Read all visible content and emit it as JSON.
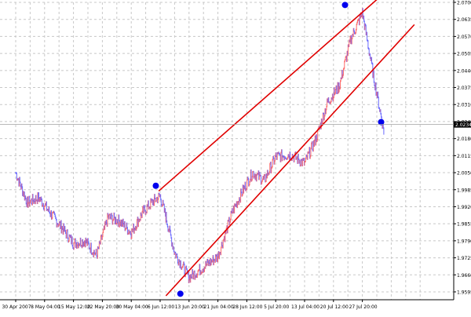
{
  "chart_data": {
    "type": "line",
    "title": "",
    "xlabel": "",
    "ylabel": "",
    "ylim": [
      1.9565,
      2.07
    ],
    "grid": true,
    "colors": {
      "background": "#ffffff",
      "grid": "#c8c8c8",
      "price_up": "#ff6a6a",
      "price_down": "#6a6aff",
      "channel": "#e00000",
      "marker": "#0000ee",
      "axis": "#000000",
      "current_label_bg": "#000000",
      "current_label_fg": "#ffffff"
    },
    "y_ticks": [
      "2.0700",
      "2.0635",
      "2.0570",
      "2.0505",
      "2.0440",
      "2.0375",
      "2.0310",
      "2.0245",
      "2.0180",
      "2.0115",
      "2.0050",
      "1.9985",
      "1.9920",
      "1.9855",
      "1.9790",
      "1.9725",
      "1.9660",
      "1.9595"
    ],
    "current_price": "2.0234",
    "x_ticks": [
      "30 Apr 2007",
      "8 May 04:00",
      "15 May 12:00",
      "22 May 20:00",
      "30 May 04:00",
      "6 Jun 12:00",
      "13 Jun 20:00",
      "21 Jun 04:00",
      "28 Jun 12:00",
      "5 Jul 20:00",
      "13 Jul 04:00",
      "20 Jul 12:00",
      "27 Jul 20:00"
    ],
    "series": [
      {
        "x": [
          0,
          0.4,
          0.8,
          1.2,
          1.6,
          2.0,
          2.4,
          2.8,
          3.2,
          3.6,
          4.0,
          4.4,
          4.8,
          5.0,
          5.2,
          5.5,
          6.0,
          6.5,
          7.0,
          7.5,
          7.9,
          8.2,
          8.6,
          9.0,
          9.5,
          10.0,
          10.4,
          10.8,
          11.2,
          11.6,
          12.0,
          12.4,
          12.75
        ],
        "values": [
          2.005,
          1.9935,
          1.9955,
          1.9895,
          1.984,
          1.978,
          1.979,
          1.9735,
          1.988,
          1.9865,
          1.982,
          1.99,
          1.9945,
          1.996,
          1.988,
          1.9745,
          1.965,
          1.969,
          1.973,
          1.99,
          1.999,
          2.005,
          2.002,
          2.011,
          2.012,
          2.0085,
          2.018,
          2.032,
          2.038,
          2.056,
          2.066,
          2.041,
          2.0205
        ]
      }
    ],
    "channel_lines": [
      {
        "x": [
          4.95,
          12.65
        ],
        "values": [
          1.998,
          2.0725
        ]
      },
      {
        "x": [
          5.2,
          13.8
        ],
        "values": [
          1.958,
          2.0615
        ]
      }
    ],
    "markers": [
      {
        "x": 4.85,
        "value": 2.0
      },
      {
        "x": 5.7,
        "value": 1.9588
      },
      {
        "x": 11.4,
        "value": 2.069
      },
      {
        "x": 12.65,
        "value": 2.0243
      }
    ]
  }
}
